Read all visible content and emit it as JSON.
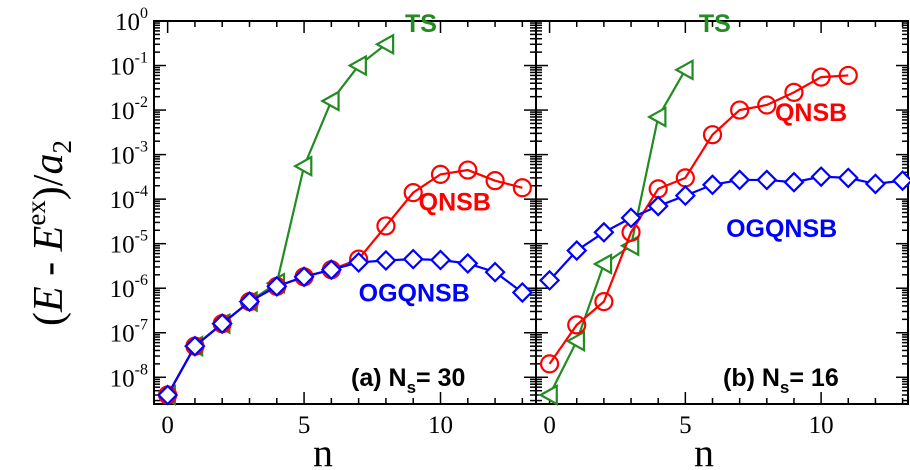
{
  "figure": {
    "ylabel": {
      "open": "(",
      "E1": "E",
      "minus": " - ",
      "E2": "E",
      "sup": "ex",
      "close": ")/",
      "a": "a",
      "sub": "2"
    },
    "xlabel": "n"
  },
  "chart_data": [
    {
      "type": "line",
      "panel": "a",
      "annotation": {
        "prefix": "(a) N",
        "sub": "s",
        "suffix": "= 30"
      },
      "ylog": true,
      "xlim": [
        -0.5,
        13.5
      ],
      "ylim_log10": [
        -8.6,
        0
      ],
      "x_ticks": [
        0,
        5,
        10
      ],
      "y_tick_labels": [
        {
          "exp": "0",
          "value": 0
        },
        {
          "exp": "-1",
          "value": -1
        },
        {
          "exp": "-2",
          "value": -2
        },
        {
          "exp": "-3",
          "value": -3
        },
        {
          "exp": "-4",
          "value": -4
        },
        {
          "exp": "-5",
          "value": -5
        },
        {
          "exp": "-6",
          "value": -6
        },
        {
          "exp": "-7",
          "value": -7
        },
        {
          "exp": "-8",
          "value": -8
        }
      ],
      "series": [
        {
          "name": "TS",
          "color": "#228b22",
          "marker": "triangle-left",
          "x": [
            0,
            1,
            2,
            3,
            4,
            5,
            6,
            7,
            8
          ],
          "y": [
            4e-09,
            5e-08,
            1.6e-07,
            5e-07,
            1.3e-06,
            0.00055,
            0.016,
            0.1,
            0.3
          ],
          "label_pos": [
            8.7,
            -0.25
          ]
        },
        {
          "name": "QNSB",
          "color": "#ff0000",
          "marker": "circle",
          "x": [
            0,
            1,
            2,
            3,
            4,
            5,
            6,
            7,
            8,
            9,
            10,
            11,
            12,
            13
          ],
          "y": [
            4e-09,
            5e-08,
            1.6e-07,
            5e-07,
            1.1e-06,
            1.8e-06,
            2.6e-06,
            4.5e-06,
            2.5e-05,
            0.00014,
            0.00036,
            0.00045,
            0.00026,
            0.00018
          ],
          "label_pos": [
            9.2,
            -4.25
          ]
        },
        {
          "name": "OGQNSB",
          "color": "#0000ff",
          "marker": "diamond",
          "x": [
            0,
            1,
            2,
            3,
            4,
            5,
            6,
            7,
            8,
            9,
            10,
            11,
            12,
            13
          ],
          "y": [
            4e-09,
            5e-08,
            1.6e-07,
            5e-07,
            1.1e-06,
            1.8e-06,
            2.6e-06,
            3.8e-06,
            4.2e-06,
            4.5e-06,
            4.3e-06,
            3.6e-06,
            2.3e-06,
            8e-07
          ],
          "label_pos": [
            7.0,
            -6.3
          ]
        }
      ]
    },
    {
      "type": "line",
      "panel": "b",
      "annotation": {
        "prefix": "(b) N",
        "sub": "s",
        "suffix": "= 16"
      },
      "ylog": true,
      "xlim": [
        -0.5,
        13.2
      ],
      "ylim_log10": [
        -8.6,
        0
      ],
      "x_ticks": [
        0,
        5,
        10
      ],
      "y_tick_labels": [],
      "series": [
        {
          "name": "TS",
          "color": "#228b22",
          "marker": "triangle-left",
          "x": [
            0,
            1,
            2,
            3,
            4,
            5
          ],
          "y": [
            4e-09,
            6.5e-08,
            3.5e-06,
            9e-06,
            0.007,
            0.08
          ],
          "label_pos": [
            5.5,
            -0.25
          ]
        },
        {
          "name": "QNSB",
          "color": "#ff0000",
          "marker": "circle",
          "x": [
            0,
            1,
            2,
            3,
            4,
            5,
            6,
            7,
            8,
            9,
            10,
            11
          ],
          "y": [
            2e-08,
            1.5e-07,
            5e-07,
            1.8e-05,
            0.00017,
            0.0003,
            0.0028,
            0.01,
            0.013,
            0.025,
            0.055,
            0.06
          ],
          "label_pos": [
            8.3,
            -2.25
          ]
        },
        {
          "name": "OGQNSB",
          "color": "#0000ff",
          "marker": "diamond",
          "x": [
            0,
            1,
            2,
            3,
            4,
            5,
            6,
            7,
            8,
            9,
            10,
            11,
            12,
            13
          ],
          "y": [
            1.5e-06,
            7e-06,
            1.8e-05,
            3.8e-05,
            7e-05,
            0.00012,
            0.00021,
            0.00027,
            0.00027,
            0.00024,
            0.00032,
            0.0003,
            0.00022,
            0.00026
          ],
          "label_pos": [
            6.5,
            -4.85
          ]
        }
      ]
    }
  ]
}
